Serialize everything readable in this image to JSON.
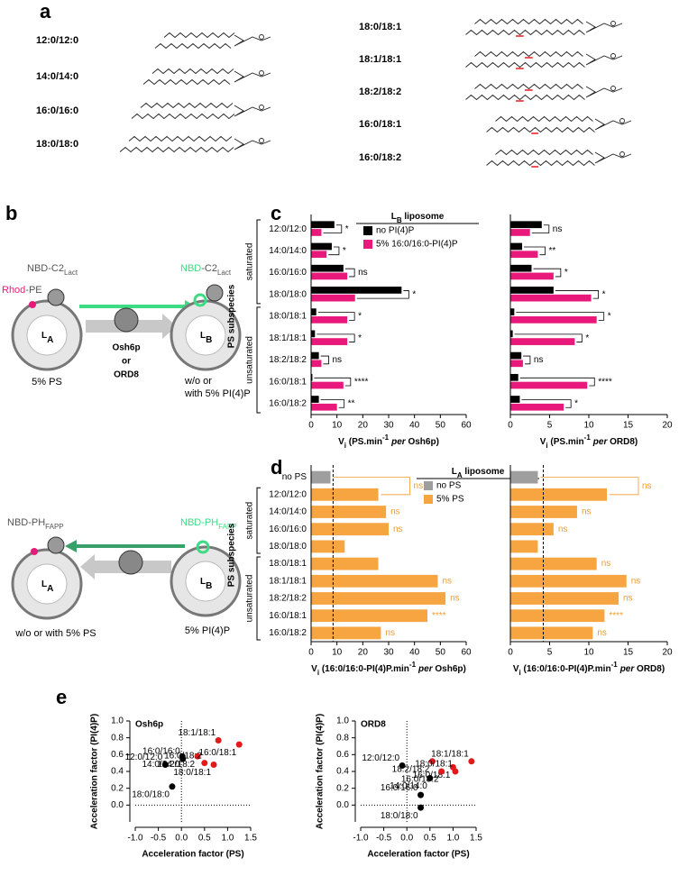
{
  "panel_labels": [
    "a",
    "b",
    "c",
    "d",
    "e"
  ],
  "a": {
    "lipids": [
      "12:0/12:0",
      "14:0/14:0",
      "16:0/16:0",
      "18:0/18:0",
      "18:0/18:1",
      "18:1/18:1",
      "18:2/18:2",
      "16:0/18:1",
      "16:0/18:2"
    ]
  },
  "b": {
    "top": {
      "donor_left": [
        "NBD-C2",
        "Lact"
      ],
      "acceptor": [
        "Rhod",
        "-PE"
      ],
      "donor_right": [
        "NBD",
        "-C2",
        "Lact"
      ],
      "liposome_a": [
        "L",
        "A"
      ],
      "liposome_b": [
        "L",
        "B"
      ],
      "transfer": [
        "Osh6p",
        "or",
        "ORD8"
      ],
      "condition_a": "5% PS",
      "condition_b": [
        "w/o or",
        "with 5% PI(4)P"
      ]
    },
    "bottom": {
      "donor_left": [
        "NBD-PH",
        "FAPP"
      ],
      "donor_right": [
        "NBD-PH",
        "FAPP"
      ],
      "liposome_a": [
        "L",
        "A"
      ],
      "liposome_b": [
        "L",
        "B"
      ],
      "condition_a": "w/o or with 5% PS",
      "condition_b": "5% PI(4)P"
    }
  },
  "chart_data": [
    {
      "type": "bar",
      "orientation": "horizontal",
      "y_label": "PS subspecies",
      "groups": [
        {
          "label": "saturated",
          "size": 4
        },
        {
          "label": "unsaturated",
          "size": 5
        }
      ],
      "categories": [
        "12:0/12:0",
        "14:0/14:0",
        "16:0/16:0",
        "18:0/18:0",
        "18:0/18:1",
        "18:1/18:1",
        "18:2/18:2",
        "16:0/18:1",
        "16:0/18:2"
      ],
      "legend": {
        "title": [
          "L",
          "B",
          " liposome"
        ]
      },
      "series": [
        {
          "name": "no PI(4)P",
          "color": "#000000",
          "values": [
            9,
            8,
            12.5,
            35,
            2,
            1.5,
            3,
            0.5,
            3
          ]
        },
        {
          "name": "5% 16:0/16:0-PI(4)P",
          "color": "#e8197a",
          "values": [
            4,
            6,
            14,
            17,
            14,
            14,
            4,
            12.5,
            10
          ]
        }
      ],
      "significance": [
        "*",
        "*",
        "ns",
        "*",
        "*",
        "*",
        "ns",
        "****",
        "**"
      ],
      "xlim": [
        0,
        60
      ],
      "xticks": [
        0,
        10,
        20,
        30,
        40,
        50,
        60
      ],
      "x_label": {
        "v": "V",
        "sub": "i",
        "unit": " (PS.min",
        "sup": "-1",
        "per": "per",
        "tail": " Osh6p)"
      }
    },
    {
      "type": "bar",
      "orientation": "horizontal",
      "series": [
        {
          "color": "#000000",
          "values": [
            4,
            1.5,
            2.7,
            5.5,
            0.5,
            0.3,
            1.4,
            1,
            1.2
          ]
        },
        {
          "color": "#e8197a",
          "values": [
            2.5,
            3.5,
            5.5,
            10.3,
            11,
            8.2,
            1.6,
            9.8,
            6.8
          ]
        }
      ],
      "significance": [
        "ns",
        "**",
        "*",
        "*",
        "*",
        "*",
        "ns",
        "****",
        "*"
      ],
      "xlim": [
        0,
        20
      ],
      "xticks": [
        0,
        5,
        10,
        15,
        20
      ],
      "x_label": {
        "v": "V",
        "sub": "i",
        "unit": " (PS.min",
        "sup": "-1",
        "per": "per",
        "tail": " ORD8)"
      }
    },
    {
      "type": "bar",
      "orientation": "horizontal",
      "y_label": "PS subspecies",
      "groups": [
        {
          "label": "saturated",
          "size": 4
        },
        {
          "label": "unsaturated",
          "size": 5
        }
      ],
      "categories": [
        "no PS",
        "12:0/12:0",
        "14:0/14:0",
        "16:0/16:0",
        "18:0/18:0",
        "18:0/18:1",
        "18:1/18:1",
        "18:2/18:2",
        "16:0/18:1",
        "16:0/18:2"
      ],
      "legend": {
        "title": [
          "L",
          "A",
          " liposome"
        ],
        "items": [
          {
            "label": "no PS",
            "color": "#9e9e9e"
          },
          {
            "label": "5% PS",
            "color": "#f7a541"
          }
        ]
      },
      "values": [
        7.5,
        26,
        29,
        30,
        13,
        26,
        49,
        52,
        45,
        27
      ],
      "colors": [
        "#9e9e9e",
        "#f7a541",
        "#f7a541",
        "#f7a541",
        "#f7a541",
        "#f7a541",
        "#f7a541",
        "#f7a541",
        "#f7a541",
        "#f7a541"
      ],
      "reference_line": 8.5,
      "significance": [
        null,
        "ns",
        "ns",
        "ns",
        null,
        null,
        "ns",
        "ns",
        "****",
        "ns"
      ],
      "significance_color": "#f29b30",
      "xlim": [
        0,
        60
      ],
      "xticks": [
        0,
        10,
        20,
        30,
        40,
        50,
        60
      ],
      "x_label": {
        "v": "V",
        "sub": "i",
        "unit": " (16:0/16:0-PI(4)P.min",
        "sup": "-1",
        "per": "per",
        "tail": " Osh6p)"
      }
    },
    {
      "type": "bar",
      "orientation": "horizontal",
      "values": [
        3.5,
        12.3,
        8.5,
        5.5,
        3.5,
        11,
        14.8,
        13.8,
        12,
        10.5
      ],
      "colors": [
        "#9e9e9e",
        "#f7a541",
        "#f7a541",
        "#f7a541",
        "#f7a541",
        "#f7a541",
        "#f7a541",
        "#f7a541",
        "#f7a541",
        "#f7a541"
      ],
      "reference_line": 4.2,
      "significance": [
        null,
        "ns",
        "ns",
        "ns",
        null,
        "ns",
        "ns",
        "ns",
        "****",
        "ns"
      ],
      "significance_color": "#f29b30",
      "xlim": [
        0,
        20
      ],
      "xticks": [
        0,
        5,
        10,
        15,
        20
      ],
      "x_label": {
        "v": "V",
        "sub": "i",
        "unit": " (16:0/16:0-PI(4)P.min",
        "sup": "-1",
        "per": "per",
        "tail": " ORD8)"
      }
    },
    {
      "type": "scatter",
      "title": "Osh6p",
      "x_label": "Acceleration factor (PS)",
      "y_label": "Acceleration factor (PI(4)P)",
      "xlim": [
        -1,
        1.5
      ],
      "xticks": [
        {
          "value": -1,
          "label": "-1.0"
        },
        {
          "value": -0.5,
          "label": "-0.5"
        },
        {
          "value": 0,
          "label": "0.0"
        },
        {
          "value": 0.5,
          "label": "0.5"
        },
        {
          "value": 1,
          "label": "1.0"
        },
        {
          "value": 1.5,
          "label": "1.5"
        }
      ],
      "ylim": [
        -0.2,
        1
      ],
      "yticks": [
        {
          "value": 0,
          "label": "0.0"
        },
        {
          "value": 0.2,
          "label": "0.2"
        },
        {
          "value": 0.4,
          "label": "0.4"
        },
        {
          "value": 0.6,
          "label": "0.6"
        },
        {
          "value": 0.8,
          "label": "0.8"
        },
        {
          "value": 1,
          "label": "1.0"
        }
      ],
      "series": [
        {
          "color": "#000000",
          "labels": [
            "12:0/12:0",
            "14:0/14:0",
            "16:0/16:0",
            "18:0/18:0"
          ],
          "x": [
            -0.35,
            0.02,
            0.03,
            -0.2
          ],
          "values": [
            0.48,
            0.58,
            0.55,
            0.22
          ]
        },
        {
          "color": "#e31a1c",
          "labels": [
            "18:2/18:2",
            "18:1/18:1",
            "16:0/18:1",
            "16:0/18:2",
            "18:0/18:1"
          ],
          "x": [
            0.35,
            0.8,
            1.25,
            0.5,
            0.7
          ],
          "values": [
            0.58,
            0.77,
            0.72,
            0.5,
            0.48
          ]
        }
      ]
    },
    {
      "type": "scatter",
      "title": "ORD8",
      "x_label": "Acceleration factor (PS)",
      "y_label": "Acceleration factor (PI(4)P)",
      "xlim": [
        -1,
        1.5
      ],
      "xticks": [
        {
          "value": -1,
          "label": "-1.0"
        },
        {
          "value": -0.5,
          "label": "-0.5"
        },
        {
          "value": 0,
          "label": "0.0"
        },
        {
          "value": 0.5,
          "label": "0.5"
        },
        {
          "value": 1,
          "label": "1.0"
        },
        {
          "value": 1.5,
          "label": "1.5"
        }
      ],
      "ylim": [
        -0.2,
        1
      ],
      "yticks": [
        {
          "value": 0,
          "label": "0.0"
        },
        {
          "value": 0.2,
          "label": "0.2"
        },
        {
          "value": 0.4,
          "label": "0.4"
        },
        {
          "value": 0.6,
          "label": "0.6"
        },
        {
          "value": 0.8,
          "label": "0.8"
        },
        {
          "value": 1,
          "label": "1.0"
        }
      ],
      "series": [
        {
          "color": "#000000",
          "labels": [
            "12:0/12:0",
            "14:0/14:0",
            "16:0/16:0",
            "18:0/18:0"
          ],
          "x": [
            -0.1,
            0.5,
            0.3,
            0.3
          ],
          "values": [
            0.47,
            0.32,
            0.12,
            -0.03
          ]
        },
        {
          "color": "#e31a1c",
          "labels": [
            "18:2/18:2",
            "18:1/18:1",
            "16:0/18:1",
            "18:0/18:1",
            "16:0/18:2"
          ],
          "x": [
            0.55,
            1.4,
            1.0,
            1.05,
            0.75
          ],
          "values": [
            0.52,
            0.52,
            0.45,
            0.4,
            0.4
          ]
        }
      ]
    }
  ]
}
